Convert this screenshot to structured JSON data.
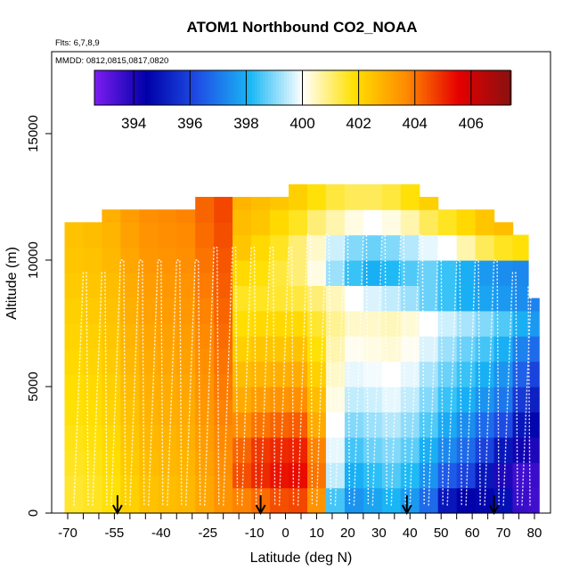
{
  "chart_data": {
    "type": "heatmap",
    "title": "ATOM1 Northbound CO2_NOAA",
    "flights_note": "Flts: 6,7,8,9",
    "dates_note": "MMDD: 0812,0815,0817,0820",
    "xlabel": "Latitude (deg N)",
    "ylabel": "Altitude (m)",
    "xlim": [
      -70,
      82
    ],
    "ylim": [
      0,
      18000
    ],
    "x_ticks": [
      -70,
      -55,
      -40,
      -25,
      -10,
      0,
      10,
      20,
      30,
      40,
      50,
      60,
      70,
      80
    ],
    "x_tick_labels": [
      "-70",
      "-55",
      "-40",
      "-25",
      "-10",
      "0",
      "10",
      "20",
      "30",
      "40",
      "50",
      "60",
      "70",
      "80"
    ],
    "y_ticks": [
      0,
      5000,
      10000,
      15000
    ],
    "y_tick_labels": [
      "0",
      "5000",
      "10000",
      "15000"
    ],
    "colorbar": {
      "min": 392.6,
      "max": 407.4,
      "ticks": [
        394,
        396,
        398,
        400,
        402,
        404,
        406
      ],
      "tick_labels": [
        "394",
        "396",
        "398",
        "400",
        "402",
        "404",
        "406"
      ],
      "colors": [
        "#7d1df2",
        "#0000a8",
        "#1f4fe6",
        "#19b8f5",
        "#ffffff",
        "#ffe000",
        "#ff8a00",
        "#e60000",
        "#8a1010"
      ]
    },
    "arrow_latitudes": [
      -54,
      -8,
      39,
      67
    ],
    "x_centers": [
      -68,
      -62,
      -56,
      -50,
      -44,
      -38,
      -32,
      -26,
      -20,
      -14,
      -8,
      -2,
      4,
      10,
      16,
      22,
      28,
      34,
      40,
      46,
      52,
      58,
      64,
      70,
      76,
      80
    ],
    "altitudes": [
      250,
      750,
      1250,
      1750,
      2250,
      2750,
      3250,
      3750,
      4250,
      4750,
      5250,
      5750,
      6250,
      6750,
      7250,
      7750,
      8250,
      8750,
      9250,
      9750,
      10250,
      10750,
      11250,
      11750,
      12250,
      12750
    ],
    "top_altitudes": [
      11500,
      11500,
      12000,
      12000,
      12000,
      12000,
      12000,
      12500,
      12500,
      12500,
      12500,
      12500,
      13000,
      13000,
      13000,
      13000,
      13000,
      13000,
      13000,
      12500,
      12000,
      12000,
      12000,
      11500,
      11000,
      8500
    ],
    "values": [
      [
        401.5,
        401.6,
        401.8,
        402.2,
        402.5,
        402.6,
        402.7,
        403.1,
        403.5,
        403.8,
        404.1,
        404.5,
        404.6,
        403.5,
        398.5,
        397.5,
        397.8,
        398.1,
        397.6,
        396.8,
        395.0,
        394.5,
        394.6,
        394.8,
        393.6,
        393.5
      ],
      [
        401.5,
        401.6,
        401.8,
        402.2,
        402.5,
        402.6,
        402.7,
        403.1,
        403.5,
        403.8,
        404.1,
        404.5,
        404.6,
        403.5,
        398.5,
        397.5,
        397.8,
        398.1,
        397.6,
        396.8,
        395.0,
        394.5,
        394.6,
        394.8,
        393.6,
        393.5
      ],
      [
        401.5,
        401.6,
        401.8,
        402.2,
        402.5,
        402.6,
        402.7,
        403.1,
        403.5,
        404.5,
        405.0,
        405.3,
        405.4,
        404.0,
        399.5,
        398.0,
        398.3,
        398.6,
        398.2,
        397.5,
        396.5,
        396.0,
        395.0,
        394.0,
        393.5,
        393.6
      ],
      [
        401.6,
        401.7,
        401.9,
        402.3,
        402.6,
        402.7,
        402.8,
        403.2,
        403.6,
        404.5,
        405.0,
        405.3,
        405.4,
        404.0,
        399.5,
        398.0,
        398.3,
        398.6,
        398.2,
        397.5,
        396.5,
        396.0,
        395.0,
        394.0,
        393.5,
        393.6
      ],
      [
        401.6,
        401.7,
        401.9,
        402.3,
        402.6,
        402.7,
        402.8,
        403.2,
        403.6,
        404.2,
        404.8,
        405.0,
        405.1,
        403.8,
        399.8,
        398.5,
        398.8,
        399.0,
        398.7,
        398.0,
        397.3,
        396.8,
        396.0,
        395.0,
        394.2,
        394.0
      ],
      [
        401.7,
        401.8,
        402.0,
        402.4,
        402.7,
        402.8,
        402.9,
        403.3,
        403.7,
        404.2,
        404.8,
        405.0,
        405.1,
        403.8,
        399.8,
        398.5,
        398.8,
        399.0,
        398.7,
        398.0,
        397.3,
        396.8,
        396.0,
        395.0,
        394.2,
        394.0
      ],
      [
        401.7,
        401.8,
        402.0,
        402.4,
        402.7,
        402.8,
        402.9,
        403.3,
        403.7,
        403.6,
        404.0,
        404.2,
        404.3,
        403.0,
        400.0,
        399.0,
        399.2,
        399.4,
        399.1,
        398.6,
        397.9,
        397.4,
        396.8,
        396.2,
        395.0,
        394.6
      ],
      [
        401.8,
        401.9,
        402.1,
        402.5,
        402.8,
        402.9,
        403.0,
        403.4,
        403.8,
        403.6,
        404.0,
        404.2,
        404.3,
        403.0,
        400.0,
        399.0,
        399.2,
        399.4,
        399.1,
        398.6,
        397.9,
        397.4,
        396.8,
        396.2,
        395.0,
        394.6
      ],
      [
        401.8,
        401.9,
        402.1,
        402.5,
        402.8,
        402.9,
        403.0,
        403.4,
        403.8,
        403.0,
        403.3,
        403.5,
        403.6,
        402.6,
        400.2,
        399.5,
        399.6,
        399.8,
        399.5,
        399.0,
        398.4,
        398.0,
        397.5,
        397.0,
        395.8,
        395.2
      ],
      [
        401.9,
        402.0,
        402.2,
        402.6,
        402.9,
        403.0,
        403.1,
        403.5,
        403.9,
        403.0,
        403.3,
        403.5,
        403.6,
        402.6,
        400.2,
        399.5,
        399.6,
        399.8,
        399.5,
        399.0,
        398.4,
        398.0,
        397.5,
        397.0,
        395.8,
        395.2
      ],
      [
        401.9,
        402.0,
        402.2,
        402.6,
        402.9,
        403.0,
        403.1,
        403.5,
        403.9,
        402.6,
        402.8,
        402.9,
        403.0,
        402.2,
        400.4,
        399.8,
        399.9,
        400.0,
        399.8,
        399.3,
        398.8,
        398.4,
        398.0,
        397.5,
        396.6,
        396.0
      ],
      [
        402.0,
        402.1,
        402.3,
        402.7,
        403.0,
        403.1,
        403.2,
        403.6,
        404.0,
        402.6,
        402.8,
        402.9,
        403.0,
        402.2,
        400.4,
        399.8,
        399.9,
        400.0,
        399.8,
        399.3,
        398.8,
        398.4,
        398.0,
        397.5,
        396.6,
        396.0
      ],
      [
        402.0,
        402.1,
        402.3,
        402.7,
        403.0,
        403.1,
        403.2,
        403.6,
        404.0,
        402.2,
        402.4,
        402.4,
        402.5,
        401.8,
        400.6,
        400.1,
        400.2,
        400.3,
        400.1,
        399.7,
        399.2,
        398.8,
        398.5,
        398.0,
        397.2,
        396.8
      ],
      [
        402.1,
        402.2,
        402.4,
        402.8,
        403.1,
        403.2,
        403.3,
        403.7,
        404.1,
        402.2,
        402.4,
        402.4,
        402.5,
        401.8,
        400.6,
        400.1,
        400.2,
        400.3,
        400.1,
        399.7,
        399.2,
        398.8,
        398.5,
        398.0,
        397.2,
        396.8
      ],
      [
        402.1,
        402.2,
        402.4,
        402.8,
        403.1,
        403.2,
        403.3,
        403.7,
        404.1,
        401.9,
        402.0,
        402.0,
        402.0,
        401.5,
        400.8,
        400.4,
        400.4,
        400.5,
        400.3,
        400.0,
        399.6,
        399.3,
        399.0,
        398.6,
        398.0,
        397.6
      ],
      [
        402.2,
        402.3,
        402.5,
        402.9,
        403.2,
        403.3,
        403.4,
        403.8,
        404.2,
        401.9,
        402.0,
        402.0,
        402.0,
        401.5,
        400.8,
        400.4,
        400.4,
        400.5,
        400.3,
        400.0,
        399.6,
        399.3,
        399.0,
        398.6,
        398.0,
        397.6
      ],
      [
        402.2,
        402.3,
        402.5,
        402.9,
        403.2,
        403.3,
        403.4,
        403.8,
        404.2,
        401.6,
        401.6,
        401.5,
        401.4,
        401.0,
        400.5,
        400.0,
        399.7,
        399.5,
        399.2,
        398.8,
        398.4,
        398.0,
        397.8,
        397.6,
        397.4,
        397.2
      ],
      [
        402.3,
        402.4,
        402.6,
        403.0,
        403.3,
        403.4,
        403.5,
        403.9,
        404.3,
        401.6,
        401.6,
        401.5,
        401.4,
        401.0,
        400.5,
        400.0,
        399.7,
        399.5,
        399.2,
        398.8,
        398.4,
        398.0,
        397.8,
        397.6,
        397.4,
        397.2
      ],
      [
        402.3,
        402.4,
        402.6,
        403.0,
        403.3,
        403.4,
        403.5,
        403.9,
        404.3,
        402.0,
        401.8,
        401.4,
        401.0,
        400.2,
        399.2,
        398.4,
        398.0,
        398.2,
        398.6,
        398.8,
        398.4,
        398.0,
        397.6,
        397.4,
        397.3,
        397.2
      ],
      [
        402.4,
        402.5,
        402.7,
        403.1,
        403.4,
        403.5,
        403.6,
        404.0,
        404.4,
        402.0,
        401.8,
        401.4,
        401.0,
        400.2,
        399.2,
        398.4,
        398.0,
        398.2,
        398.6,
        398.8,
        398.4,
        398.0,
        397.6,
        397.4,
        397.3,
        397.2
      ],
      [
        402.4,
        402.5,
        402.7,
        403.1,
        403.4,
        403.5,
        403.6,
        404.0,
        404.4,
        402.4,
        402.0,
        401.6,
        401.0,
        400.4,
        399.6,
        399.0,
        398.8,
        399.0,
        399.4,
        399.8,
        400.0,
        400.6,
        401.2,
        401.6,
        401.8,
        401.8
      ],
      [
        402.5,
        402.6,
        402.8,
        403.2,
        403.5,
        403.6,
        403.7,
        404.1,
        404.5,
        402.4,
        402.0,
        401.6,
        401.0,
        400.4,
        399.6,
        399.0,
        398.8,
        399.0,
        399.4,
        399.8,
        400.0,
        400.6,
        401.2,
        401.6,
        401.8,
        401.8
      ],
      [
        402.5,
        402.6,
        402.8,
        403.2,
        403.5,
        403.6,
        403.7,
        404.1,
        404.5,
        402.6,
        402.4,
        402.0,
        401.6,
        401.0,
        400.6,
        400.2,
        400.0,
        400.2,
        400.6,
        401.2,
        401.6,
        402.0,
        402.4,
        402.6,
        402.6,
        402.6
      ],
      [
        402.6,
        402.7,
        402.9,
        403.3,
        403.6,
        403.7,
        403.8,
        404.2,
        404.6,
        402.6,
        402.4,
        402.0,
        401.6,
        401.0,
        400.6,
        400.2,
        400.0,
        400.2,
        400.6,
        401.2,
        401.6,
        402.0,
        402.4,
        402.6,
        402.6,
        402.6
      ],
      [
        402.6,
        402.7,
        402.9,
        403.3,
        403.6,
        403.7,
        403.8,
        404.2,
        404.6,
        402.8,
        402.6,
        402.4,
        402.2,
        401.8,
        401.4,
        401.2,
        401.2,
        401.4,
        401.8,
        402.2,
        402.6,
        402.8,
        403.0,
        403.2,
        403.2,
        403.2
      ],
      [
        402.7,
        402.8,
        403.0,
        403.4,
        403.7,
        403.8,
        403.9,
        404.3,
        404.7,
        402.8,
        402.6,
        402.4,
        402.2,
        401.8,
        401.4,
        401.2,
        401.2,
        401.4,
        401.8,
        402.2,
        402.6,
        402.8,
        403.0,
        403.2,
        403.2,
        403.2
      ]
    ]
  }
}
